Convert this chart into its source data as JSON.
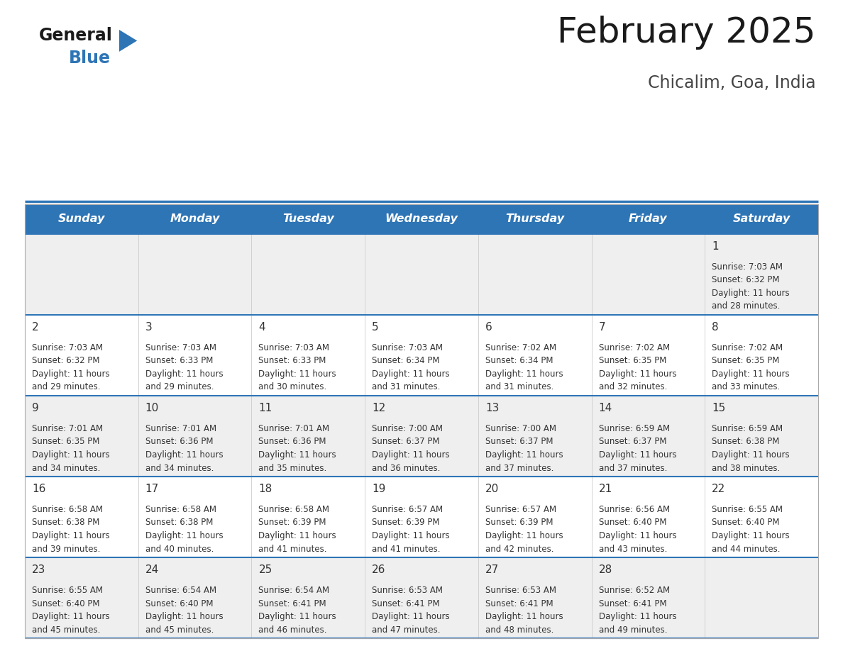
{
  "title": "February 2025",
  "subtitle": "Chicalim, Goa, India",
  "header_bg": "#2E75B6",
  "header_text_color": "#FFFFFF",
  "days_of_week": [
    "Sunday",
    "Monday",
    "Tuesday",
    "Wednesday",
    "Thursday",
    "Friday",
    "Saturday"
  ],
  "row_bg_light": "#EFEFEF",
  "row_bg_white": "#FFFFFF",
  "separator_color": "#2E75B6",
  "day_number_color": "#333333",
  "cell_text_color": "#333333",
  "logo_black": "#1a1a1a",
  "logo_blue": "#2E75B6",
  "calendar": [
    [
      null,
      null,
      null,
      null,
      null,
      null,
      {
        "day": 1,
        "sunrise": "7:03 AM",
        "sunset": "6:32 PM",
        "daylight": "11 hours and 28 minutes."
      }
    ],
    [
      {
        "day": 2,
        "sunrise": "7:03 AM",
        "sunset": "6:32 PM",
        "daylight": "11 hours and 29 minutes."
      },
      {
        "day": 3,
        "sunrise": "7:03 AM",
        "sunset": "6:33 PM",
        "daylight": "11 hours and 29 minutes."
      },
      {
        "day": 4,
        "sunrise": "7:03 AM",
        "sunset": "6:33 PM",
        "daylight": "11 hours and 30 minutes."
      },
      {
        "day": 5,
        "sunrise": "7:03 AM",
        "sunset": "6:34 PM",
        "daylight": "11 hours and 31 minutes."
      },
      {
        "day": 6,
        "sunrise": "7:02 AM",
        "sunset": "6:34 PM",
        "daylight": "11 hours and 31 minutes."
      },
      {
        "day": 7,
        "sunrise": "7:02 AM",
        "sunset": "6:35 PM",
        "daylight": "11 hours and 32 minutes."
      },
      {
        "day": 8,
        "sunrise": "7:02 AM",
        "sunset": "6:35 PM",
        "daylight": "11 hours and 33 minutes."
      }
    ],
    [
      {
        "day": 9,
        "sunrise": "7:01 AM",
        "sunset": "6:35 PM",
        "daylight": "11 hours and 34 minutes."
      },
      {
        "day": 10,
        "sunrise": "7:01 AM",
        "sunset": "6:36 PM",
        "daylight": "11 hours and 34 minutes."
      },
      {
        "day": 11,
        "sunrise": "7:01 AM",
        "sunset": "6:36 PM",
        "daylight": "11 hours and 35 minutes."
      },
      {
        "day": 12,
        "sunrise": "7:00 AM",
        "sunset": "6:37 PM",
        "daylight": "11 hours and 36 minutes."
      },
      {
        "day": 13,
        "sunrise": "7:00 AM",
        "sunset": "6:37 PM",
        "daylight": "11 hours and 37 minutes."
      },
      {
        "day": 14,
        "sunrise": "6:59 AM",
        "sunset": "6:37 PM",
        "daylight": "11 hours and 37 minutes."
      },
      {
        "day": 15,
        "sunrise": "6:59 AM",
        "sunset": "6:38 PM",
        "daylight": "11 hours and 38 minutes."
      }
    ],
    [
      {
        "day": 16,
        "sunrise": "6:58 AM",
        "sunset": "6:38 PM",
        "daylight": "11 hours and 39 minutes."
      },
      {
        "day": 17,
        "sunrise": "6:58 AM",
        "sunset": "6:38 PM",
        "daylight": "11 hours and 40 minutes."
      },
      {
        "day": 18,
        "sunrise": "6:58 AM",
        "sunset": "6:39 PM",
        "daylight": "11 hours and 41 minutes."
      },
      {
        "day": 19,
        "sunrise": "6:57 AM",
        "sunset": "6:39 PM",
        "daylight": "11 hours and 41 minutes."
      },
      {
        "day": 20,
        "sunrise": "6:57 AM",
        "sunset": "6:39 PM",
        "daylight": "11 hours and 42 minutes."
      },
      {
        "day": 21,
        "sunrise": "6:56 AM",
        "sunset": "6:40 PM",
        "daylight": "11 hours and 43 minutes."
      },
      {
        "day": 22,
        "sunrise": "6:55 AM",
        "sunset": "6:40 PM",
        "daylight": "11 hours and 44 minutes."
      }
    ],
    [
      {
        "day": 23,
        "sunrise": "6:55 AM",
        "sunset": "6:40 PM",
        "daylight": "11 hours and 45 minutes."
      },
      {
        "day": 24,
        "sunrise": "6:54 AM",
        "sunset": "6:40 PM",
        "daylight": "11 hours and 45 minutes."
      },
      {
        "day": 25,
        "sunrise": "6:54 AM",
        "sunset": "6:41 PM",
        "daylight": "11 hours and 46 minutes."
      },
      {
        "day": 26,
        "sunrise": "6:53 AM",
        "sunset": "6:41 PM",
        "daylight": "11 hours and 47 minutes."
      },
      {
        "day": 27,
        "sunrise": "6:53 AM",
        "sunset": "6:41 PM",
        "daylight": "11 hours and 48 minutes."
      },
      {
        "day": 28,
        "sunrise": "6:52 AM",
        "sunset": "6:41 PM",
        "daylight": "11 hours and 49 minutes."
      },
      null
    ]
  ]
}
